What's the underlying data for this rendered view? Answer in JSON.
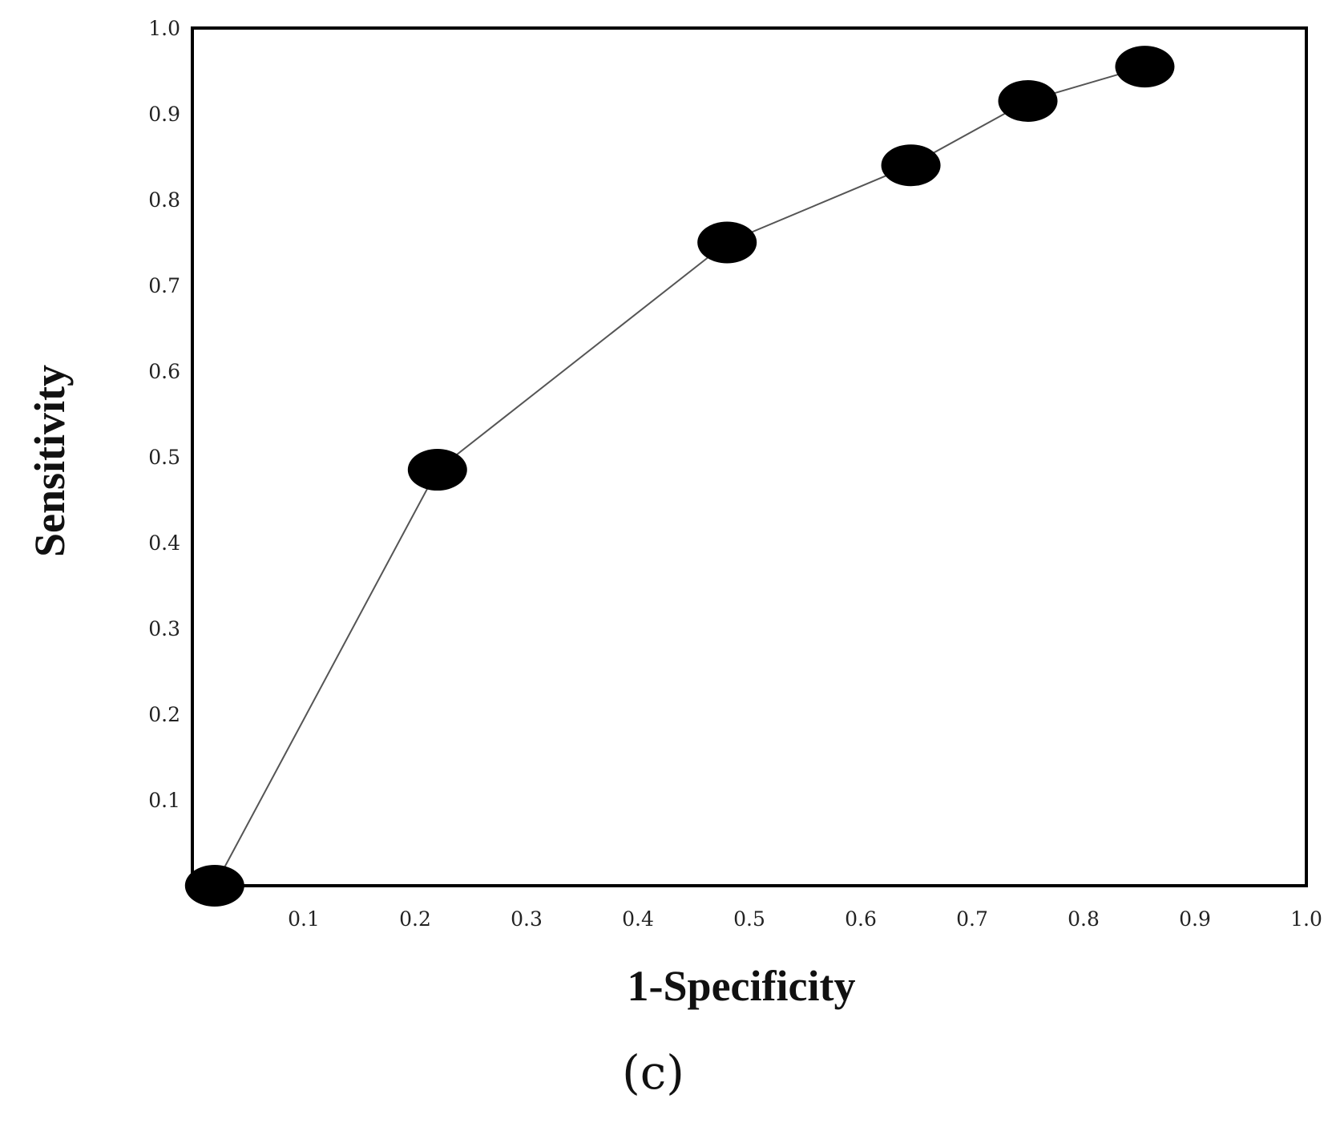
{
  "chart_data": {
    "type": "line",
    "title": "",
    "xlabel": "1-Specificity",
    "ylabel": "Sensitivity",
    "xlim": [
      0,
      1.0
    ],
    "ylim": [
      0,
      1.0
    ],
    "grid": false,
    "legend": "none",
    "x_ticks": [
      "0.1",
      "0.2",
      "0.3",
      "0.4",
      "0.5",
      "0.6",
      "0.7",
      "0.8",
      "0.9",
      "1.0"
    ],
    "y_ticks": [
      "0.1",
      "0.2",
      "0.3",
      "0.4",
      "0.5",
      "0.6",
      "0.7",
      "0.8",
      "0.9",
      "1.0"
    ],
    "series": [
      {
        "x": [
          0.02,
          0.22,
          0.48,
          0.645,
          0.75,
          0.855
        ],
        "y": [
          0.0,
          0.485,
          0.75,
          0.84,
          0.915,
          0.955
        ]
      }
    ],
    "colors": {
      "line": "#555555",
      "marker": "#000000",
      "frame": "#000000"
    }
  },
  "panel_label": "(c)"
}
